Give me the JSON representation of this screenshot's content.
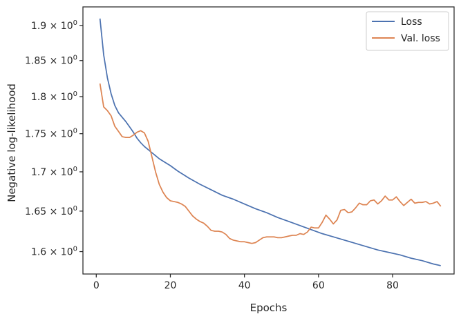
{
  "chart_data": {
    "type": "line",
    "xlabel": "Epochs",
    "ylabel": "Negative log-likelihood",
    "xlim": [
      -3.6,
      96.6
    ],
    "ylim": [
      1.573,
      1.927
    ],
    "yscale": "log",
    "grid": false,
    "legend_position": "top-right",
    "x_ticks": [
      0,
      20,
      40,
      60,
      80
    ],
    "x_tick_labels": [
      "0",
      "20",
      "40",
      "60",
      "80"
    ],
    "y_ticks": [
      1.6,
      1.65,
      1.7,
      1.75,
      1.8,
      1.85,
      1.9
    ],
    "y_tick_labels": [
      {
        "mantissa": "1.6",
        "times": "×",
        "base": "10",
        "exp": "0"
      },
      {
        "mantissa": "1.65",
        "times": "×",
        "base": "10",
        "exp": "0"
      },
      {
        "mantissa": "1.7",
        "times": "×",
        "base": "10",
        "exp": "0"
      },
      {
        "mantissa": "1.75",
        "times": "×",
        "base": "10",
        "exp": "0"
      },
      {
        "mantissa": "1.8",
        "times": "×",
        "base": "10",
        "exp": "0"
      },
      {
        "mantissa": "1.85",
        "times": "×",
        "base": "10",
        "exp": "0"
      },
      {
        "mantissa": "1.9",
        "times": "×",
        "base": "10",
        "exp": "0"
      }
    ],
    "series": [
      {
        "name": "Loss",
        "color": "#4c72b0",
        "points": [
          [
            1,
            1.91
          ],
          [
            2,
            1.858
          ],
          [
            3,
            1.826
          ],
          [
            4,
            1.804
          ],
          [
            5,
            1.788
          ],
          [
            6,
            1.778
          ],
          [
            7,
            1.772
          ],
          [
            8,
            1.766
          ],
          [
            9,
            1.759
          ],
          [
            10,
            1.752
          ],
          [
            11,
            1.744
          ],
          [
            12,
            1.738
          ],
          [
            13,
            1.733
          ],
          [
            14,
            1.729
          ],
          [
            15,
            1.725
          ],
          [
            16,
            1.721
          ],
          [
            17,
            1.717
          ],
          [
            18,
            1.714
          ],
          [
            20,
            1.708
          ],
          [
            22,
            1.701
          ],
          [
            25,
            1.692
          ],
          [
            28,
            1.684
          ],
          [
            31,
            1.677
          ],
          [
            34,
            1.67
          ],
          [
            37,
            1.665
          ],
          [
            40,
            1.659
          ],
          [
            43,
            1.653
          ],
          [
            46,
            1.648
          ],
          [
            49,
            1.642
          ],
          [
            52,
            1.637
          ],
          [
            55,
            1.632
          ],
          [
            58,
            1.627
          ],
          [
            61,
            1.622
          ],
          [
            64,
            1.618
          ],
          [
            67,
            1.614
          ],
          [
            70,
            1.61
          ],
          [
            73,
            1.606
          ],
          [
            76,
            1.602
          ],
          [
            79,
            1.599
          ],
          [
            82,
            1.596
          ],
          [
            85,
            1.592
          ],
          [
            88,
            1.589
          ],
          [
            91,
            1.585
          ],
          [
            93,
            1.583
          ]
        ]
      },
      {
        "name": "Val. loss",
        "color": "#dd8452",
        "points": [
          [
            1,
            1.818
          ],
          [
            2,
            1.786
          ],
          [
            3,
            1.781
          ],
          [
            4,
            1.774
          ],
          [
            5,
            1.76
          ],
          [
            6,
            1.753
          ],
          [
            7,
            1.746
          ],
          [
            8,
            1.745
          ],
          [
            9,
            1.745
          ],
          [
            10,
            1.748
          ],
          [
            11,
            1.752
          ],
          [
            12,
            1.754
          ],
          [
            13,
            1.751
          ],
          [
            14,
            1.74
          ],
          [
            15,
            1.72
          ],
          [
            16,
            1.7
          ],
          [
            17,
            1.684
          ],
          [
            18,
            1.674
          ],
          [
            19,
            1.667
          ],
          [
            20,
            1.663
          ],
          [
            21,
            1.662
          ],
          [
            22,
            1.661
          ],
          [
            23,
            1.659
          ],
          [
            24,
            1.656
          ],
          [
            25,
            1.65
          ],
          [
            26,
            1.644
          ],
          [
            27,
            1.64
          ],
          [
            28,
            1.637
          ],
          [
            29,
            1.635
          ],
          [
            30,
            1.631
          ],
          [
            31,
            1.626
          ],
          [
            32,
            1.625
          ],
          [
            33,
            1.625
          ],
          [
            34,
            1.624
          ],
          [
            35,
            1.621
          ],
          [
            36,
            1.616
          ],
          [
            37,
            1.614
          ],
          [
            38,
            1.613
          ],
          [
            39,
            1.612
          ],
          [
            40,
            1.612
          ],
          [
            41,
            1.611
          ],
          [
            42,
            1.61
          ],
          [
            43,
            1.611
          ],
          [
            44,
            1.614
          ],
          [
            45,
            1.617
          ],
          [
            46,
            1.618
          ],
          [
            47,
            1.618
          ],
          [
            48,
            1.618
          ],
          [
            49,
            1.617
          ],
          [
            50,
            1.617
          ],
          [
            51,
            1.618
          ],
          [
            52,
            1.619
          ],
          [
            53,
            1.62
          ],
          [
            54,
            1.62
          ],
          [
            55,
            1.622
          ],
          [
            56,
            1.621
          ],
          [
            57,
            1.624
          ],
          [
            58,
            1.63
          ],
          [
            59,
            1.629
          ],
          [
            60,
            1.629
          ],
          [
            61,
            1.636
          ],
          [
            62,
            1.645
          ],
          [
            63,
            1.64
          ],
          [
            64,
            1.634
          ],
          [
            65,
            1.639
          ],
          [
            66,
            1.651
          ],
          [
            67,
            1.652
          ],
          [
            68,
            1.648
          ],
          [
            69,
            1.649
          ],
          [
            70,
            1.654
          ],
          [
            71,
            1.66
          ],
          [
            72,
            1.658
          ],
          [
            73,
            1.658
          ],
          [
            74,
            1.663
          ],
          [
            75,
            1.664
          ],
          [
            76,
            1.659
          ],
          [
            77,
            1.663
          ],
          [
            78,
            1.669
          ],
          [
            79,
            1.664
          ],
          [
            80,
            1.664
          ],
          [
            81,
            1.668
          ],
          [
            82,
            1.662
          ],
          [
            83,
            1.657
          ],
          [
            84,
            1.661
          ],
          [
            85,
            1.665
          ],
          [
            86,
            1.66
          ],
          [
            87,
            1.661
          ],
          [
            88,
            1.661
          ],
          [
            89,
            1.662
          ],
          [
            90,
            1.659
          ],
          [
            91,
            1.66
          ],
          [
            92,
            1.662
          ],
          [
            93,
            1.656
          ]
        ]
      }
    ]
  }
}
